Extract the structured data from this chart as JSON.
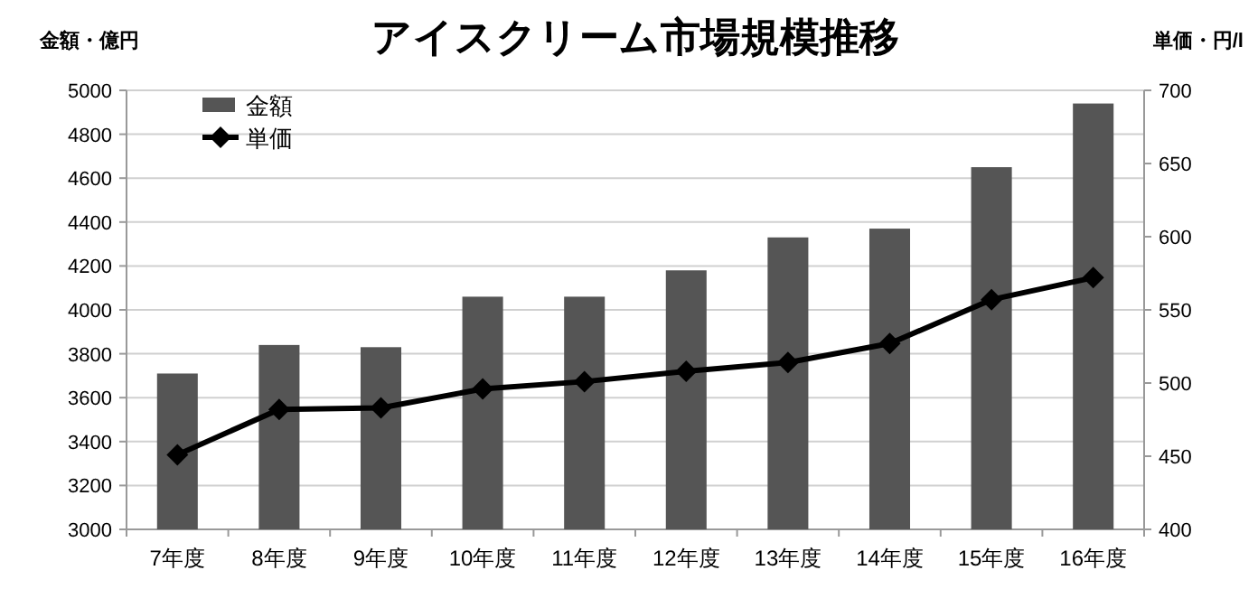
{
  "chart_data": {
    "type": "bar",
    "title": "アイスクリーム市場規模推移",
    "ylabel": "金額・億円",
    "y2label": "単価・円/l",
    "categories": [
      "7年度",
      "8年度",
      "9年度",
      "10年度",
      "11年度",
      "12年度",
      "13年度",
      "14年度",
      "15年度",
      "16年度"
    ],
    "series": [
      {
        "name": "金額",
        "color": "#555555",
        "values": [
          3710,
          3840,
          3830,
          4060,
          4060,
          4180,
          4330,
          4370,
          4650,
          4940
        ]
      },
      {
        "name": "単価",
        "type": "line",
        "axis": "y2",
        "color": "#000000",
        "marker": "diamond",
        "values": [
          451,
          482,
          483,
          496,
          501,
          508,
          514,
          527,
          557,
          572
        ]
      }
    ],
    "ylim": [
      3000,
      5000
    ],
    "yticks": [
      3000,
      3200,
      3400,
      3600,
      3800,
      4000,
      4200,
      4400,
      4600,
      4800,
      5000
    ],
    "y2lim": [
      400,
      700
    ],
    "y2ticks": [
      400,
      450,
      500,
      550,
      600,
      650,
      700
    ],
    "grid": "y",
    "legend": "top left"
  }
}
